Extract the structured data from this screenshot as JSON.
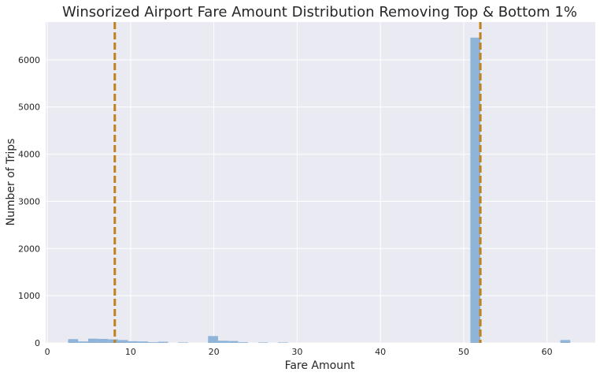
{
  "chart_data": {
    "type": "bar",
    "title": "Winsorized Airport Fare Amount Distribution Removing Top & Bottom 1%",
    "xlabel": "Fare Amount",
    "ylabel": "Number of Trips",
    "xlim": [
      -0.2,
      65.8
    ],
    "ylim": [
      0,
      6800
    ],
    "xticks": [
      "0",
      "10",
      "20",
      "30",
      "40",
      "50",
      "60"
    ],
    "yticks": [
      "0",
      "1000",
      "2000",
      "3000",
      "4000",
      "5000",
      "6000"
    ],
    "grid": true,
    "colors": {
      "bars": "#8fb4d8",
      "vlines": "#c0801a",
      "background": "#eaeaf2",
      "grid": "#ffffff"
    },
    "bin_width": 1.2,
    "bins": [
      {
        "x": 2.5,
        "count": 80
      },
      {
        "x": 3.7,
        "count": 30
      },
      {
        "x": 4.9,
        "count": 90
      },
      {
        "x": 6.1,
        "count": 85
      },
      {
        "x": 7.3,
        "count": 75
      },
      {
        "x": 8.5,
        "count": 60
      },
      {
        "x": 9.7,
        "count": 35
      },
      {
        "x": 10.9,
        "count": 30
      },
      {
        "x": 12.1,
        "count": 15
      },
      {
        "x": 13.3,
        "count": 25
      },
      {
        "x": 15.7,
        "count": 10
      },
      {
        "x": 19.3,
        "count": 145
      },
      {
        "x": 20.5,
        "count": 45
      },
      {
        "x": 21.7,
        "count": 40
      },
      {
        "x": 22.9,
        "count": 15
      },
      {
        "x": 25.3,
        "count": 10
      },
      {
        "x": 27.7,
        "count": 10
      },
      {
        "x": 50.8,
        "count": 6470
      },
      {
        "x": 61.6,
        "count": 60
      }
    ],
    "vlines": [
      8.1,
      52.0
    ]
  }
}
